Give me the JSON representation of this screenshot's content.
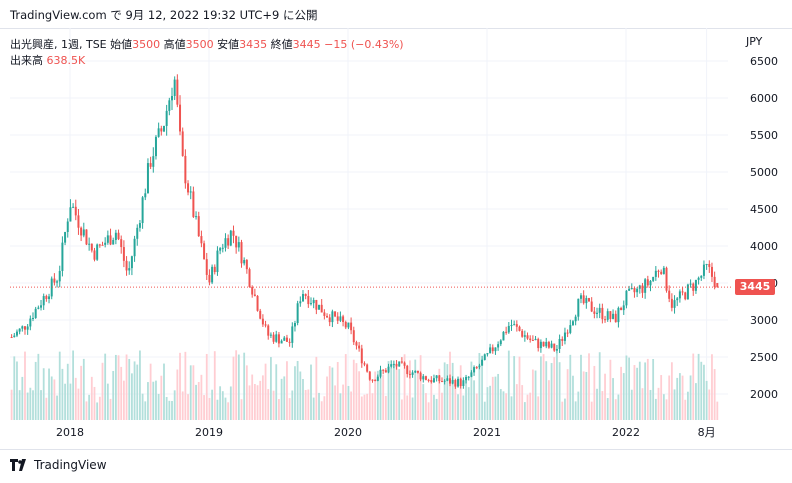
{
  "header": {
    "source_text": "TradingView.com で 9月 12, 2022 19:32 UTC+9 に公開"
  },
  "legend": {
    "symbol": "出光興産, 1週, TSE",
    "open_label": "始値",
    "open": "3500",
    "high_label": "高値",
    "high": "3500",
    "low_label": "安値",
    "low": "3435",
    "close_label": "終値",
    "close": "3445",
    "change": "−15 (−0.43%)",
    "volume_label": "出来高",
    "volume": "638.5K"
  },
  "currency": "JPY",
  "last_price_tag": "3445",
  "footer": {
    "brand": "TradingView"
  },
  "colors": {
    "up": "#26a69a",
    "down": "#ef5350",
    "grid": "#f0f3fa",
    "up_volume": "#b2dfdb",
    "down_volume": "#ffcdd2"
  },
  "chart_data": {
    "type": "candlestick",
    "y_axis_ticks": [
      2000,
      2500,
      3000,
      3500,
      4000,
      4500,
      5000,
      5500,
      6000,
      6500
    ],
    "ylim": [
      1650,
      6550
    ],
    "x_axis_ticks": [
      "2018",
      "2019",
      "2020",
      "2021",
      "2022",
      "8月"
    ],
    "last_price": 3445,
    "price_anchors": [
      {
        "date": "2017-07",
        "price": 2650
      },
      {
        "date": "2017-09",
        "price": 2900
      },
      {
        "date": "2017-12",
        "price": 3600
      },
      {
        "date": "2018-01",
        "price": 4600
      },
      {
        "date": "2018-03",
        "price": 3900
      },
      {
        "date": "2018-05",
        "price": 4200
      },
      {
        "date": "2018-06",
        "price": 3600
      },
      {
        "date": "2018-08",
        "price": 5200
      },
      {
        "date": "2018-09",
        "price": 5600
      },
      {
        "date": "2018-10",
        "price": 6300
      },
      {
        "date": "2018-10-20",
        "price": 5200
      },
      {
        "date": "2018-12",
        "price": 4200
      },
      {
        "date": "2019-01",
        "price": 3500
      },
      {
        "date": "2019-02",
        "price": 4000
      },
      {
        "date": "2019-03",
        "price": 4200
      },
      {
        "date": "2019-04",
        "price": 3800
      },
      {
        "date": "2019-06",
        "price": 2800
      },
      {
        "date": "2019-08",
        "price": 2700
      },
      {
        "date": "2019-09",
        "price": 3400
      },
      {
        "date": "2019-11",
        "price": 3100
      },
      {
        "date": "2020-01",
        "price": 2900
      },
      {
        "date": "2020-03",
        "price": 2200
      },
      {
        "date": "2020-05",
        "price": 2400
      },
      {
        "date": "2020-08",
        "price": 2200
      },
      {
        "date": "2020-11",
        "price": 2150
      },
      {
        "date": "2021-01",
        "price": 2500
      },
      {
        "date": "2021-03",
        "price": 2950
      },
      {
        "date": "2021-05",
        "price": 2700
      },
      {
        "date": "2021-07",
        "price": 2600
      },
      {
        "date": "2021-09",
        "price": 3250
      },
      {
        "date": "2021-12",
        "price": 3000
      },
      {
        "date": "2022-01",
        "price": 3300
      },
      {
        "date": "2022-03",
        "price": 3500
      },
      {
        "date": "2022-04",
        "price": 3750
      },
      {
        "date": "2022-05",
        "price": 3200
      },
      {
        "date": "2022-07",
        "price": 3500
      },
      {
        "date": "2022-08",
        "price": 3700
      },
      {
        "date": "2022-09",
        "price": 3445
      }
    ]
  }
}
